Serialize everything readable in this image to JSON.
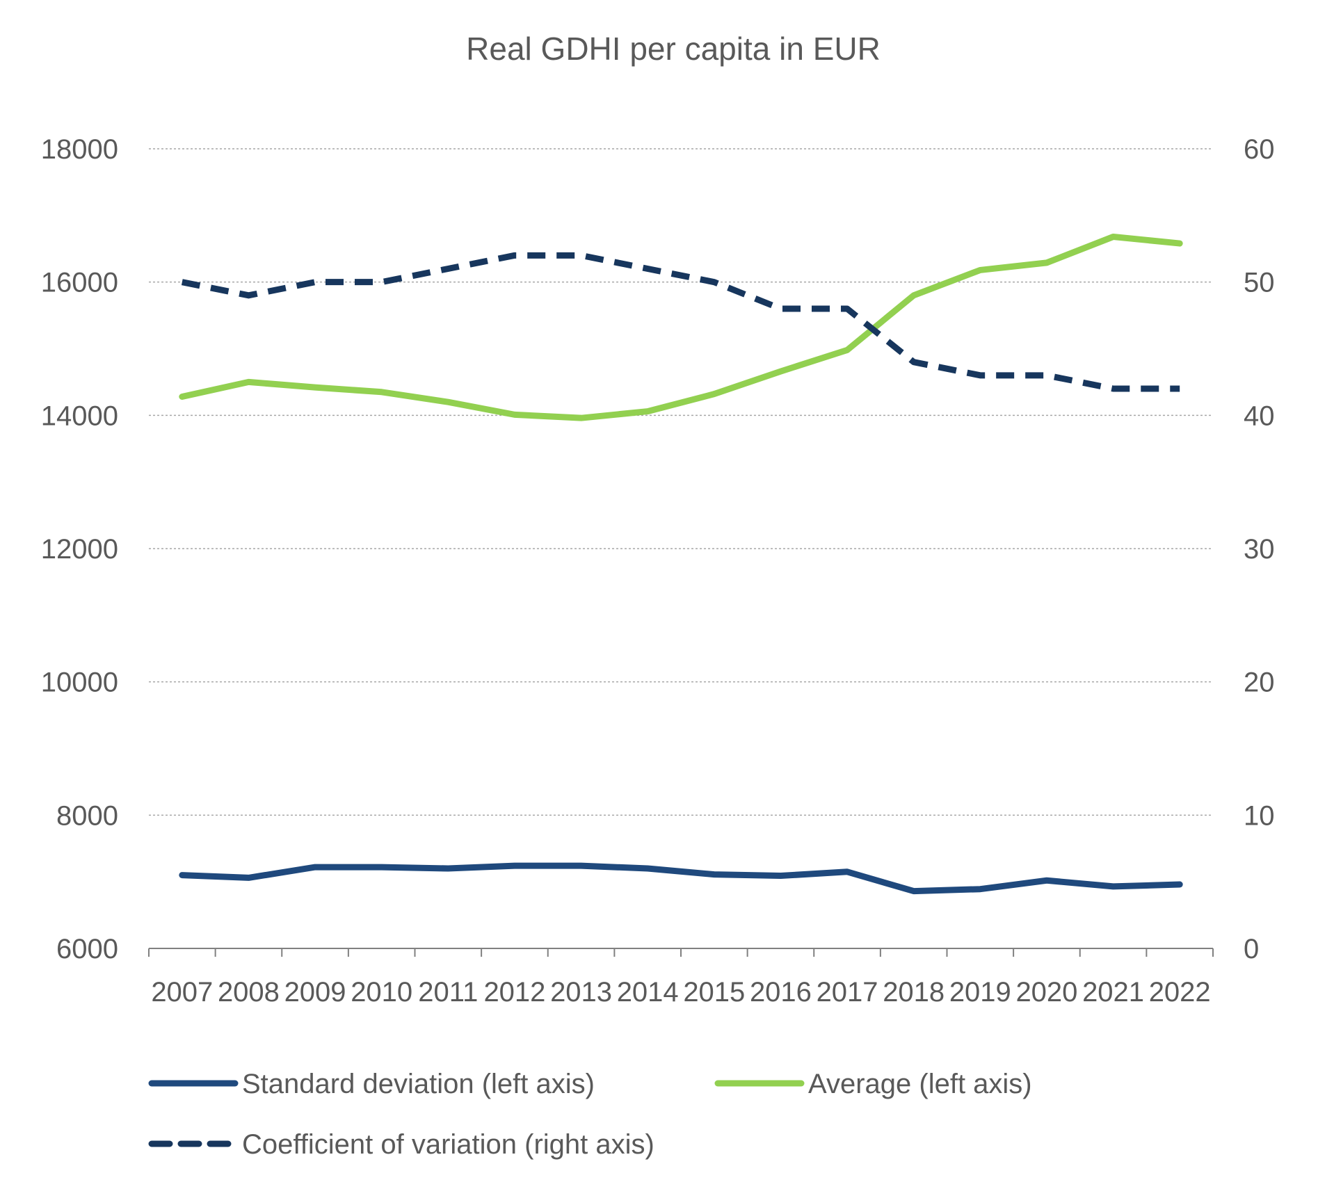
{
  "chart_data": {
    "type": "line",
    "title": "Real GDHI per capita in EUR",
    "categories": [
      "2007",
      "2008",
      "2009",
      "2010",
      "2011",
      "2012",
      "2013",
      "2014",
      "2015",
      "2016",
      "2017",
      "2018",
      "2019",
      "2020",
      "2021",
      "2022"
    ],
    "y_left": {
      "lim": [
        6000,
        18000
      ],
      "ticks": [
        6000,
        8000,
        10000,
        12000,
        14000,
        16000,
        18000
      ]
    },
    "y_right": {
      "lim": [
        0,
        60
      ],
      "ticks": [
        0,
        10,
        20,
        30,
        40,
        50,
        60
      ]
    },
    "grid": true,
    "legend_position": "bottom",
    "series": [
      {
        "name": "Standard deviation (left axis)",
        "axis": "left",
        "color": "#1f497d",
        "style": "solid",
        "values": [
          7100,
          7060,
          7220,
          7220,
          7200,
          7240,
          7240,
          7200,
          7110,
          7090,
          7150,
          6860,
          6890,
          7020,
          6930,
          6960
        ]
      },
      {
        "name": "Average (left axis)",
        "axis": "left",
        "color": "#92d050",
        "style": "solid",
        "values": [
          14280,
          14500,
          14420,
          14350,
          14200,
          14010,
          13960,
          14060,
          14320,
          14660,
          14980,
          15800,
          16180,
          16290,
          16680,
          16580
        ]
      },
      {
        "name": "Coefficient of variation (right axis)",
        "axis": "right",
        "color": "#17365d",
        "style": "dashed",
        "values": [
          50.0,
          49.0,
          50.0,
          50.0,
          51.0,
          52.0,
          52.0,
          51.0,
          50.0,
          48.0,
          48.0,
          44.0,
          43.0,
          43.0,
          42.0,
          42.0
        ]
      }
    ]
  }
}
